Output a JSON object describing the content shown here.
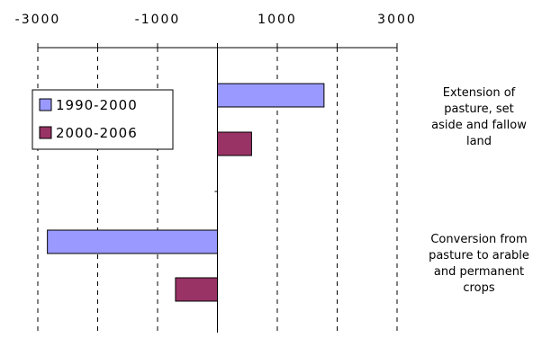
{
  "chart_data": {
    "type": "bar",
    "orientation": "horizontal",
    "categories": [
      "Extension of pasture, set aside and fallow land",
      "Conversion from pasture to arable and permanent crops"
    ],
    "category_lines": [
      [
        "Extension of",
        "pasture, set",
        "aside and fallow",
        "land"
      ],
      [
        "Conversion from",
        "pasture to arable",
        "and permanent",
        "crops"
      ]
    ],
    "series": [
      {
        "name": "1990-2000",
        "values": [
          1780,
          -2840
        ],
        "color": "#9999ff"
      },
      {
        "name": "2000-2006",
        "values": [
          570,
          -700
        ],
        "color": "#993366"
      }
    ],
    "xlim": [
      -3000,
      3000
    ],
    "xticks": [
      -3000,
      -1000,
      1000,
      3000
    ],
    "xtick_labels": [
      "-3000",
      "-1000",
      "1000",
      "3000"
    ],
    "gridlines": [
      -3000,
      -2000,
      -1000,
      1000,
      2000,
      3000
    ],
    "grid": true,
    "legend_position": "left",
    "title": "",
    "xlabel": "",
    "ylabel": ""
  }
}
